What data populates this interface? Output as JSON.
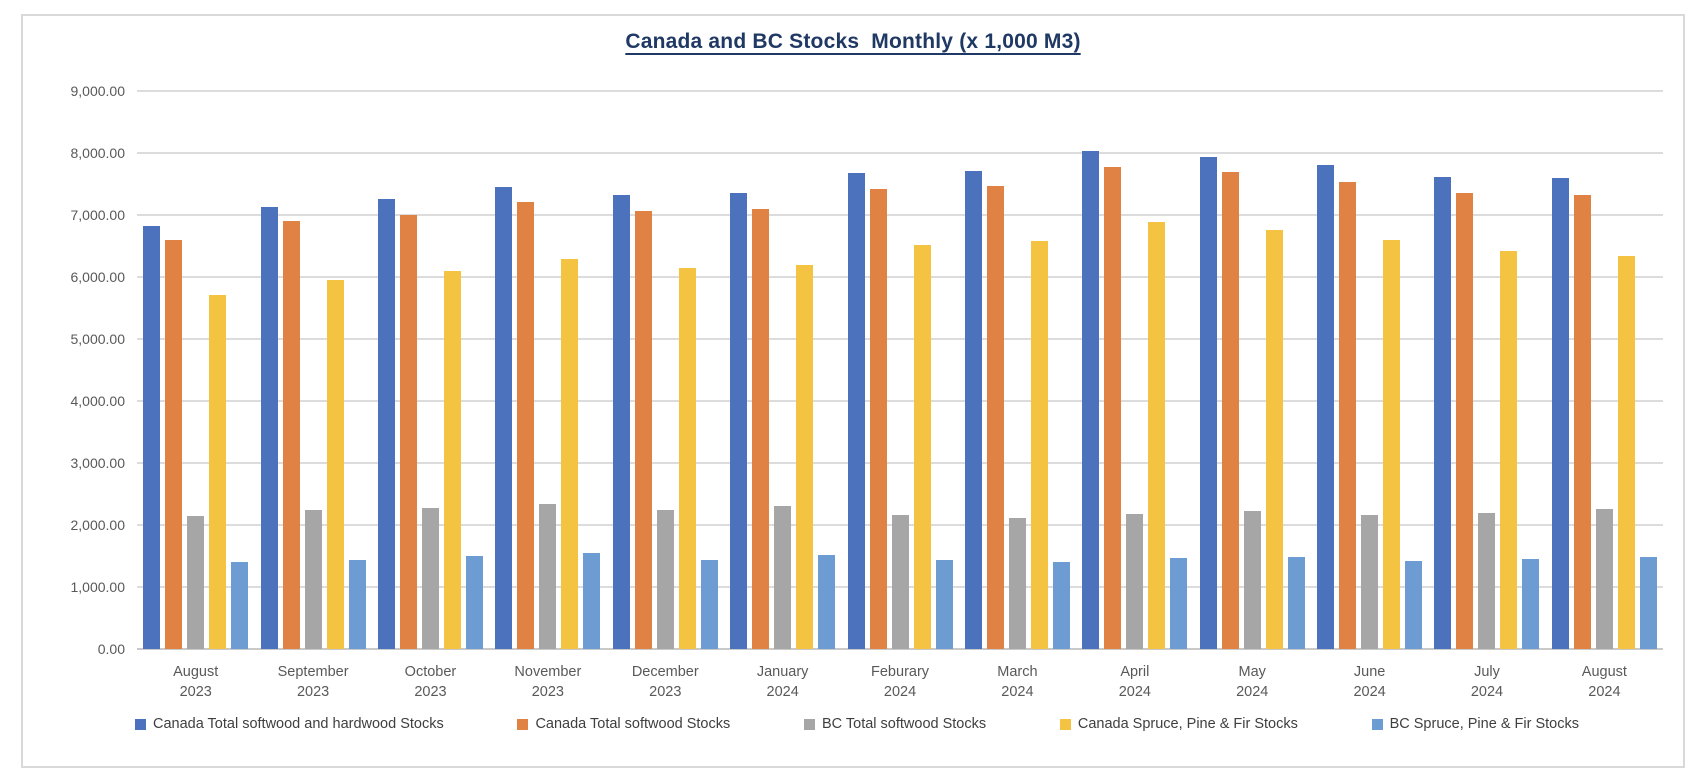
{
  "title": "Canada and BC Stocks  Monthly (x 1,000 M3)",
  "chart_data": {
    "type": "bar",
    "title": "Canada and BC Stocks  Monthly (x 1,000 M3)",
    "title_color": "#1F3864",
    "categories": [
      {
        "month": "August",
        "year": "2023"
      },
      {
        "month": "September",
        "year": "2023"
      },
      {
        "month": "October",
        "year": "2023"
      },
      {
        "month": "November",
        "year": "2023"
      },
      {
        "month": "December",
        "year": "2023"
      },
      {
        "month": "January",
        "year": "2024"
      },
      {
        "month": "Feburary",
        "year": "2024"
      },
      {
        "month": "March",
        "year": "2024"
      },
      {
        "month": "April",
        "year": "2024"
      },
      {
        "month": "May",
        "year": "2024"
      },
      {
        "month": "June",
        "year": "2024"
      },
      {
        "month": "July",
        "year": "2024"
      },
      {
        "month": "August",
        "year": "2024"
      }
    ],
    "series": [
      {
        "name": "Canada Total softwood and hardwood Stocks",
        "color": "#4C72BE",
        "values": [
          6830,
          7130,
          7250,
          7450,
          7330,
          7360,
          7680,
          7710,
          8040,
          7940,
          7800,
          7620,
          7590
        ]
      },
      {
        "name": "Canada Total softwood Stocks",
        "color": "#DF8244",
        "values": [
          6590,
          6900,
          7000,
          7210,
          7070,
          7100,
          7420,
          7460,
          7780,
          7700,
          7530,
          7360,
          7330
        ]
      },
      {
        "name": "BC Total softwood Stocks",
        "color": "#A6A6A6",
        "values": [
          2150,
          2240,
          2280,
          2340,
          2240,
          2300,
          2160,
          2110,
          2180,
          2230,
          2160,
          2190,
          2260
        ]
      },
      {
        "name": "Canada Spruce, Pine & Fir Stocks",
        "color": "#F5C342",
        "values": [
          5710,
          5950,
          6100,
          6290,
          6140,
          6200,
          6520,
          6580,
          6880,
          6760,
          6600,
          6420,
          6340
        ]
      },
      {
        "name": "BC Spruce, Pine & Fir Stocks",
        "color": "#6C9CD2",
        "values": [
          1400,
          1440,
          1500,
          1550,
          1440,
          1520,
          1440,
          1400,
          1460,
          1480,
          1420,
          1450,
          1490
        ]
      }
    ],
    "ylim": [
      0,
      9000
    ],
    "y_tick_step": 1000,
    "y_tick_labels": [
      "0.00",
      "1,000.00",
      "2,000.00",
      "3,000.00",
      "4,000.00",
      "5,000.00",
      "6,000.00",
      "7,000.00",
      "8,000.00",
      "9,000.00"
    ],
    "grid": true,
    "legend_position": "bottom"
  }
}
